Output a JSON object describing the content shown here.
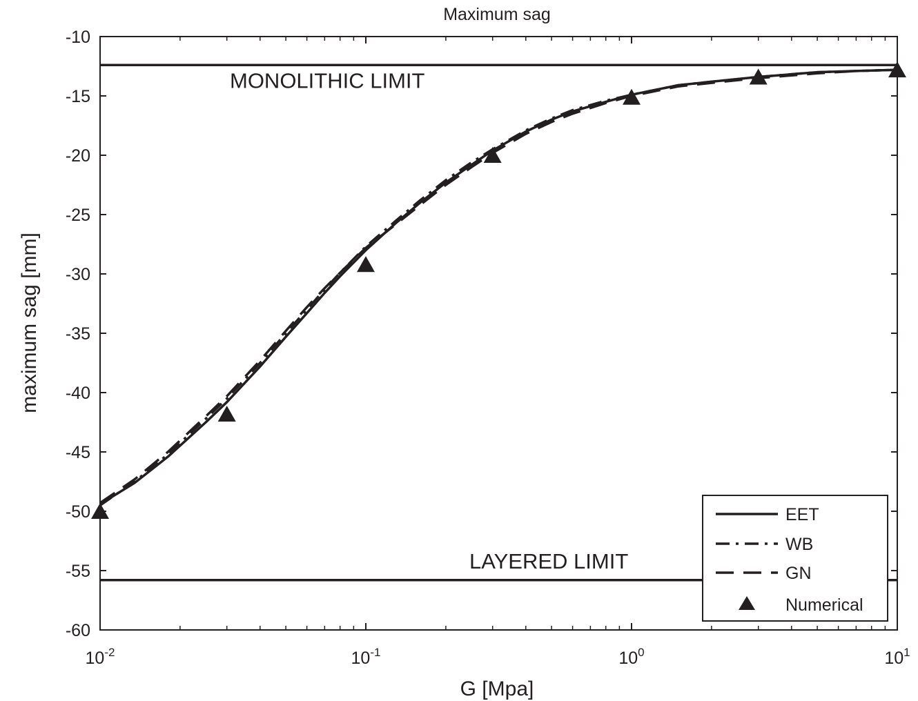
{
  "chart_data": {
    "type": "line",
    "title": "Maximum sag",
    "xlabel": "G [Mpa]",
    "ylabel": "maximum  sag [mm]",
    "xscale": "log",
    "xlim": [
      0.01,
      10
    ],
    "ylim": [
      -60,
      -10
    ],
    "x_ticks": [
      {
        "base": "10",
        "exp": "-2"
      },
      {
        "base": "10",
        "exp": "-1"
      },
      {
        "base": "10",
        "exp": "0"
      },
      {
        "base": "10",
        "exp": "1"
      }
    ],
    "y_ticks": [
      "-10",
      "-15",
      "-20",
      "-25",
      "-30",
      "-35",
      "-40",
      "-45",
      "-50",
      "-55",
      "-60"
    ],
    "grid": false,
    "legend_position": "bottom-right",
    "series": [
      {
        "name": "EET",
        "style": "solid",
        "x": [
          0.01,
          0.0135,
          0.018,
          0.025,
          0.03,
          0.04,
          0.05,
          0.06,
          0.07,
          0.08,
          0.1,
          0.13,
          0.16,
          0.2,
          0.25,
          0.3,
          0.4,
          0.5,
          0.6,
          0.8,
          1,
          1.5,
          2,
          3,
          5,
          7,
          10
        ],
        "y": [
          -49.4,
          -47.6,
          -45.4,
          -42.5,
          -40.8,
          -37.8,
          -35.3,
          -33.3,
          -31.6,
          -30.2,
          -28.0,
          -25.7,
          -24.0,
          -22.3,
          -20.8,
          -19.6,
          -18.0,
          -17.0,
          -16.3,
          -15.5,
          -14.9,
          -14.1,
          -13.8,
          -13.4,
          -13.0,
          -12.9,
          -12.8
        ]
      },
      {
        "name": "WB",
        "style": "dashdot",
        "x": [
          0.01,
          0.0135,
          0.018,
          0.025,
          0.03,
          0.04,
          0.05,
          0.06,
          0.07,
          0.08,
          0.1,
          0.13,
          0.16,
          0.2,
          0.25,
          0.3,
          0.4,
          0.5,
          0.6,
          0.8,
          1,
          1.5,
          2,
          3,
          5,
          7,
          10
        ],
        "y": [
          -49.5,
          -47.5,
          -45.2,
          -42.2,
          -40.5,
          -37.5,
          -35.0,
          -33.0,
          -31.3,
          -29.9,
          -27.7,
          -25.5,
          -23.8,
          -22.1,
          -20.6,
          -19.5,
          -17.9,
          -16.9,
          -16.2,
          -15.4,
          -14.9,
          -14.1,
          -13.8,
          -13.4,
          -13.0,
          -12.9,
          -12.8
        ]
      },
      {
        "name": "GN",
        "style": "dashed",
        "x": [
          0.01,
          0.0135,
          0.018,
          0.025,
          0.03,
          0.04,
          0.05,
          0.06,
          0.07,
          0.08,
          0.1,
          0.13,
          0.16,
          0.2,
          0.25,
          0.3,
          0.4,
          0.5,
          0.6,
          0.8,
          1,
          1.5,
          2,
          3,
          5,
          7,
          10
        ],
        "y": [
          -49.3,
          -47.3,
          -45.0,
          -42.0,
          -40.3,
          -37.3,
          -34.8,
          -32.8,
          -31.2,
          -29.9,
          -27.8,
          -25.8,
          -24.2,
          -22.5,
          -21.0,
          -19.8,
          -18.2,
          -17.2,
          -16.5,
          -15.6,
          -15.0,
          -14.2,
          -13.9,
          -13.5,
          -13.1,
          -12.9,
          -12.8
        ]
      },
      {
        "name": "Numerical",
        "style": "markers",
        "x": [
          0.01,
          0.03,
          0.1,
          0.3,
          1,
          3,
          10
        ],
        "y": [
          -50.0,
          -41.8,
          -29.2,
          -20.0,
          -15.1,
          -13.4,
          -12.8
        ]
      }
    ],
    "reference_lines": [
      {
        "label": "MONOLITHIC LIMIT",
        "y": -12.4
      },
      {
        "label": "LAYERED LIMIT",
        "y": -55.8
      }
    ]
  }
}
